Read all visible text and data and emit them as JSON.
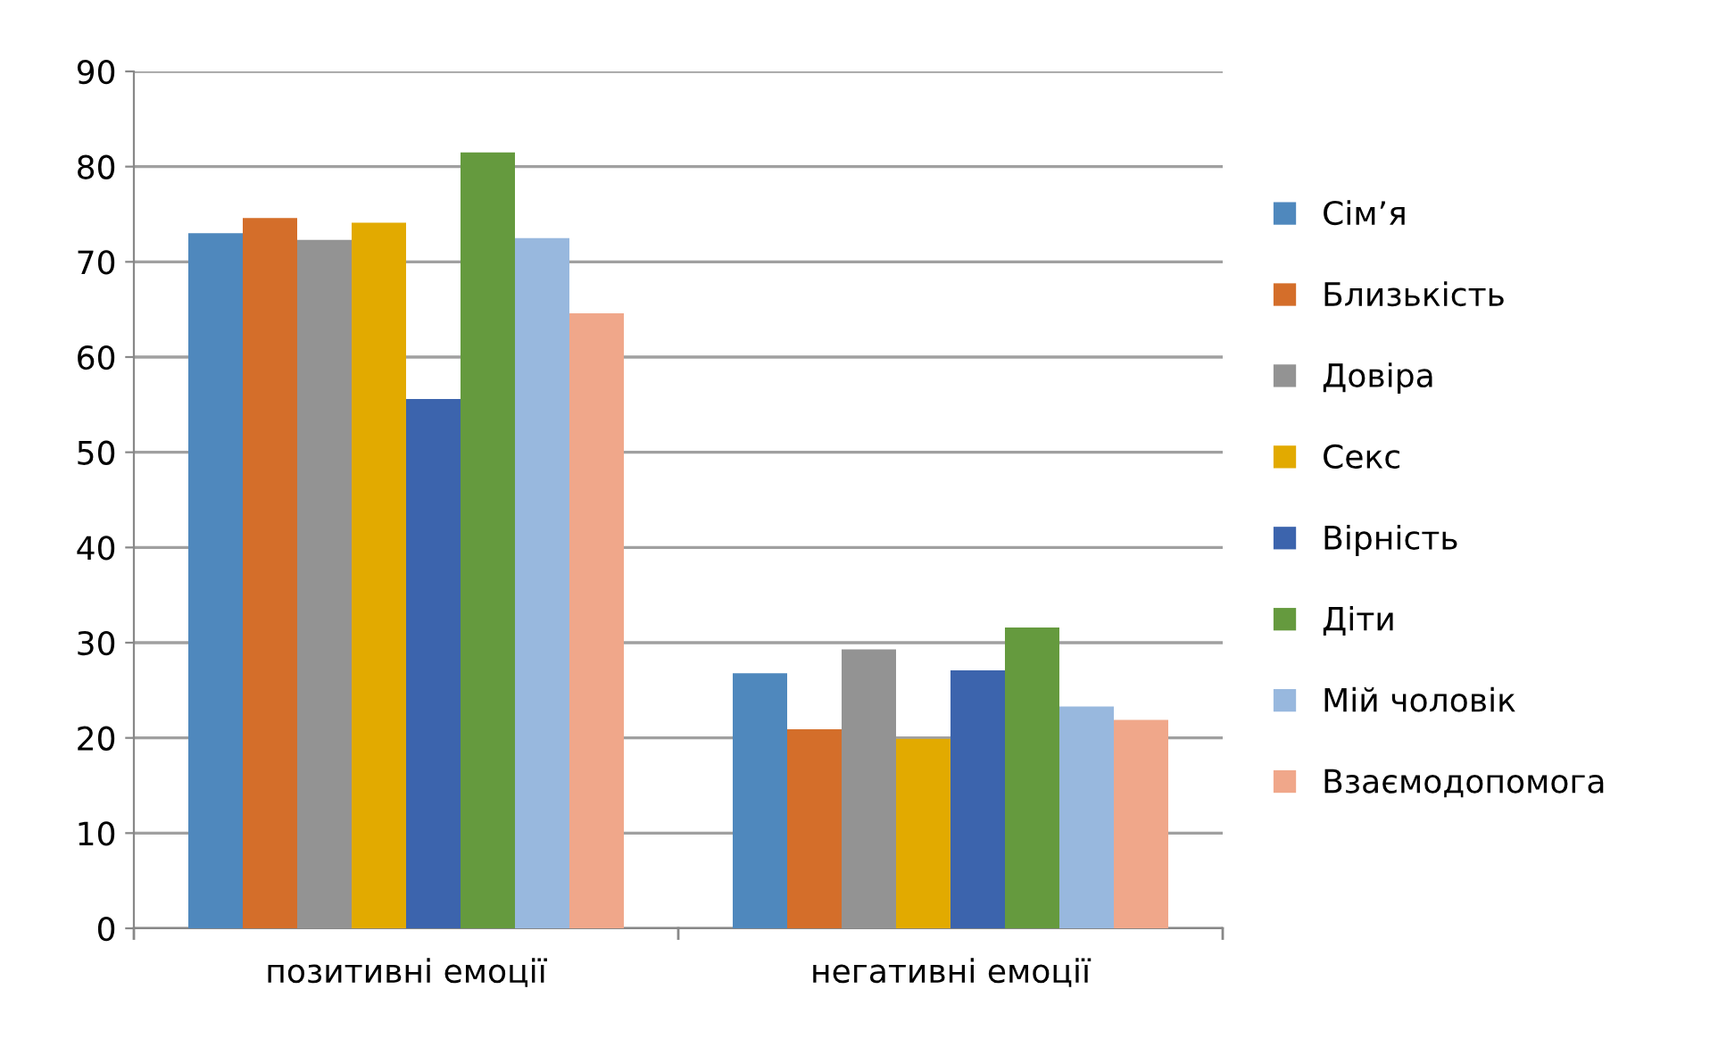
{
  "chart_data": {
    "type": "bar",
    "categories": [
      "позитивні емоції",
      "негативні емоції"
    ],
    "series": [
      {
        "name": "Сім’я",
        "color": "#4f88bd",
        "values": [
          73.0,
          26.8
        ]
      },
      {
        "name": "Близькість",
        "color": "#d46e2a",
        "values": [
          74.6,
          20.9
        ]
      },
      {
        "name": "Довіра",
        "color": "#939393",
        "values": [
          72.3,
          29.3
        ]
      },
      {
        "name": "Секс",
        "color": "#e2aa00",
        "values": [
          74.1,
          19.9
        ]
      },
      {
        "name": "Вірність",
        "color": "#3c64ad",
        "values": [
          55.6,
          27.1
        ]
      },
      {
        "name": "Діти",
        "color": "#659a3e",
        "values": [
          81.5,
          31.6
        ]
      },
      {
        "name": "Мій чоловік",
        "color": "#98b8de",
        "values": [
          72.5,
          23.3
        ]
      },
      {
        "name": "Взаємодопомога",
        "color": "#f0a78a",
        "values": [
          64.6,
          21.9
        ]
      }
    ],
    "ylim": [
      0,
      90
    ],
    "yticks": [
      0,
      10,
      20,
      30,
      40,
      50,
      60,
      70,
      80,
      90
    ],
    "grid": "y",
    "legend": "right"
  }
}
